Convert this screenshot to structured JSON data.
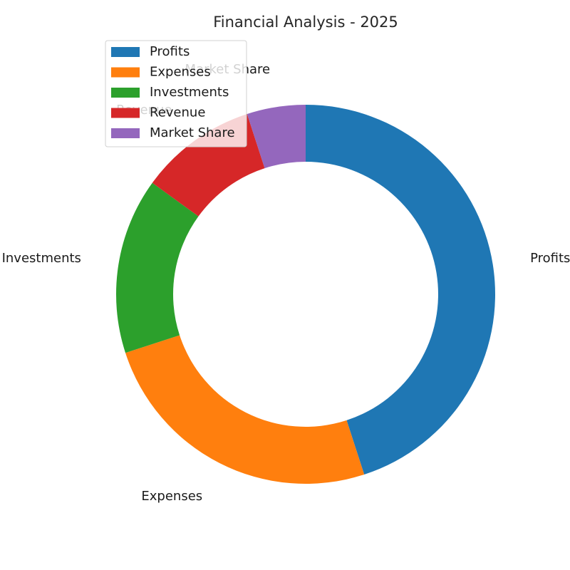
{
  "chart_data": {
    "type": "pie",
    "title": "Financial Analysis - 2025",
    "categories": [
      "Profits",
      "Expenses",
      "Investments",
      "Revenue",
      "Market Share"
    ],
    "values": [
      45,
      25,
      15,
      10,
      5
    ],
    "colors": [
      "#1f77b4",
      "#ff7f0e",
      "#2ca02c",
      "#d62728",
      "#9467bd"
    ],
    "donut": true,
    "start_angle_deg": 90,
    "direction": "clockwise",
    "legend": {
      "position": "top-left",
      "entries": [
        "Profits",
        "Expenses",
        "Investments",
        "Revenue",
        "Market Share"
      ]
    }
  }
}
